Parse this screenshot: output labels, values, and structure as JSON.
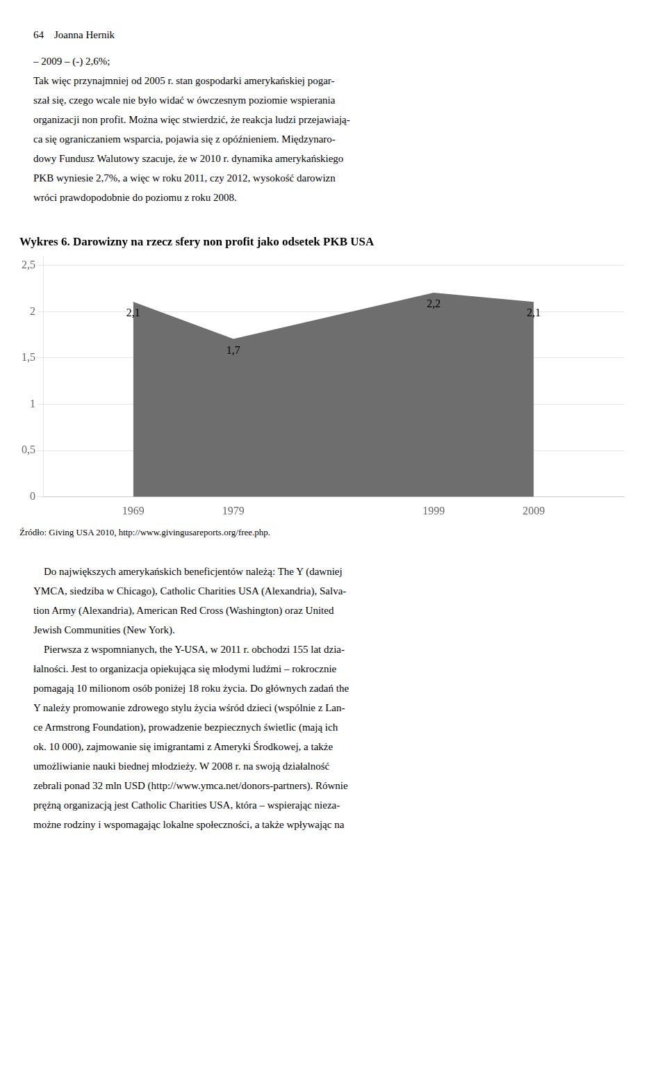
{
  "page": {
    "header": "64    Joanna Hernik",
    "text_above": [
      "– 2009 – (-) 2,6%;",
      "Tak więc przynajmniej od 2005 r. stan gospodarki amerykańskiej pogar-",
      "szał się, czego wcale nie było widać w ówczesnym poziomie wspierania",
      "organizacji non profit. Można więc stwierdzić, że reakcja ludzi przejawiają-",
      "ca się ograniczaniem wsparcia, pojawia się z opóźnieniem. Międzynaro-",
      "dowy Fundusz Walutowy szacuje, że w 2010 r. dynamika amerykańskiego",
      "PKB wyniesie 2,7%, a więc w roku 2011, czy 2012, wysokość darowizn",
      "wróci prawdopodobnie do poziomu z roku 2008."
    ],
    "text_below": [
      "    Do największych amerykańskich beneficjentów należą: The Y (dawniej",
      "YMCA, siedziba w Chicago), Catholic Charities USA (Alexandria), Salva-",
      "tion Army (Alexandria), American Red Cross (Washington) oraz United",
      "Jewish Communities (New York).",
      "    Pierwsza z wspomnianych, the Y-USA, w 2011 r. obchodzi 155 lat dzia-",
      "łalności. Jest to organizacja opiekująca się młodymi ludźmi – rokrocznie",
      "pomagają 10 milionom osób poniżej 18 roku życia. Do głównych zadań the",
      "Y należy promowanie zdrowego stylu życia wśród dzieci (wspólnie z Lan-",
      "ce Armstrong Foundation), prowadzenie bezpiecznych świetlic (mają ich",
      "ok. 10 000), zajmowanie się imigrantami z Ameryki Środkowej, a także",
      "umożliwianie nauki biednej młodzieży. W 2008 r. na swoją działalność",
      "zebrali ponad 32 mln USD (http://www.ymca.net/donors-partners). Równie",
      "prężną organizacją jest Catholic Charities USA, która – wspierając nieza-",
      "możne rodziny i wspomagając lokalne społeczności, a także wpływając na"
    ]
  },
  "chart_data": {
    "type": "area",
    "title": "Wykres 6. Darowizny na rzecz sfery non profit jako odsetek PKB USA",
    "x": [
      1969,
      1979,
      1999,
      2009
    ],
    "values": [
      2.1,
      1.7,
      2.2,
      2.1
    ],
    "value_labels": [
      "2,1",
      "1,7",
      "2,2",
      "2,1"
    ],
    "data_labels": true,
    "color": "#6e6e6e",
    "xlim": [
      1960,
      2018
    ],
    "xticks": [
      1969,
      1979,
      1999,
      2009
    ],
    "ylim": [
      0,
      2.6
    ],
    "yticks": [
      0,
      {
        "value": 0.5,
        "label": "0,5"
      },
      1,
      {
        "value": 1.5,
        "label": "1,5"
      },
      2,
      {
        "value": 2.5,
        "label": "2,5"
      }
    ],
    "grid": true,
    "source": "Źródło: Giving USA 2010, http://www.givingusareports.org/free.php."
  }
}
